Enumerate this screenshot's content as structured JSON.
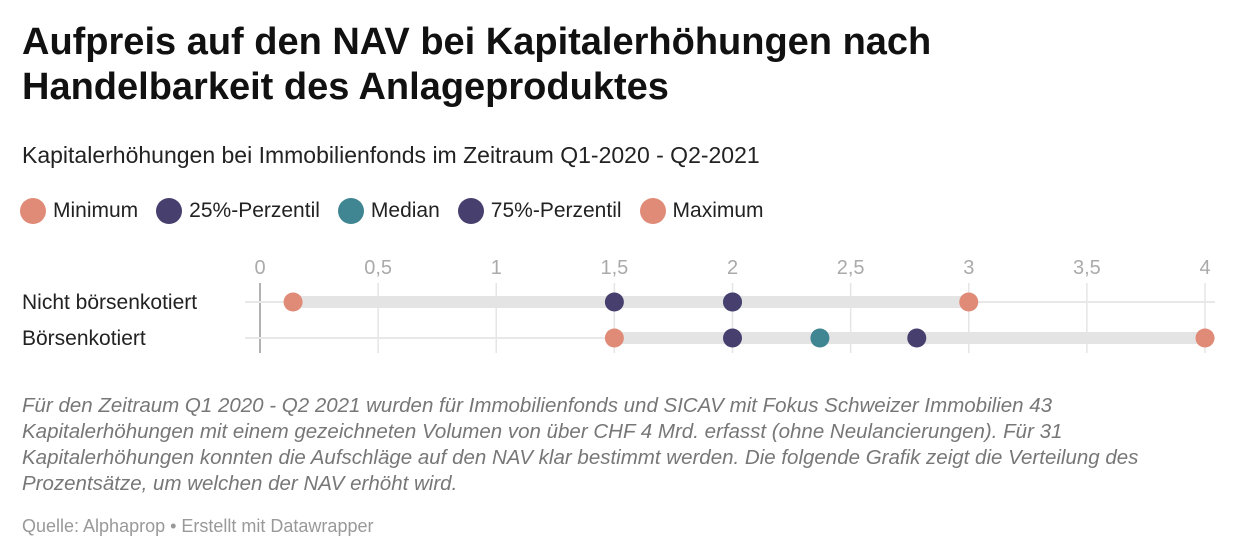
{
  "title": "Aufpreis auf den NAV bei Kapitalerhöhungen nach Handelbarkeit des Anlageproduktes",
  "subtitle": "Kapitalerhöhungen bei Immobilienfonds im Zeitraum Q1-2020 - Q2-2021",
  "note": "Für den Zeitraum Q1 2020 - Q2 2021 wurden für Immobilienfonds und SICAV mit Fokus Schweizer Immobilien 43 Kapitalerhöhungen mit einem gezeichneten Volumen von über CHF 4 Mrd. erfasst (ohne Neulancierungen). Für 31 Kapitalerhöhungen konnten die Aufschläge auf den NAV klar bestimmt werden. Die folgende Grafik zeigt die Verteilung des Prozentsätze, um welchen der NAV erhöht wird.",
  "source": "Quelle: Alphaprop • Erstellt mit Datawrapper",
  "chart_data": {
    "type": "range-dot",
    "xlim": [
      0,
      4
    ],
    "x_ticks": [
      "0",
      "0,5",
      "1",
      "1,5",
      "2",
      "2,5",
      "3",
      "3,5",
      "4"
    ],
    "x_tick_values": [
      0,
      0.5,
      1,
      1.5,
      2,
      2.5,
      3,
      3.5,
      4
    ],
    "grid": true,
    "legend_position": "top",
    "series": [
      {
        "name": "Minimum",
        "color": "#e08b77"
      },
      {
        "name": "25%-Perzentil",
        "color": "#47406e"
      },
      {
        "name": "Median",
        "color": "#3f8592"
      },
      {
        "name": "75%-Perzentil",
        "color": "#47406e"
      },
      {
        "name": "Maximum",
        "color": "#e08b77"
      }
    ],
    "categories": [
      "Nicht börsenkotiert",
      "Börsenkotiert"
    ],
    "values": [
      [
        0.14,
        1.5,
        2.0,
        2.0,
        3.0
      ],
      [
        1.5,
        2.0,
        2.37,
        2.78,
        4.0
      ]
    ]
  }
}
